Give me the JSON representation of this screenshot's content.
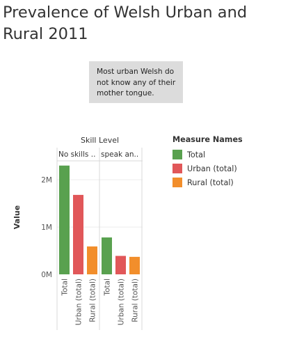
{
  "title": "Prevalence of Welsh Urban and Rural 2011",
  "annotation": "Most urban Welsh do not know any of their mother tongue.",
  "legend": {
    "title": "Measure Names",
    "items": [
      {
        "label": "Total",
        "color": "#59a14f"
      },
      {
        "label": "Urban (total)",
        "color": "#e15759"
      },
      {
        "label": "Rural (total)",
        "color": "#f28e2b"
      }
    ]
  },
  "chart_data": {
    "type": "bar",
    "column_header_title": "Skill Level",
    "groups": [
      "No skills ..",
      "speak an.."
    ],
    "categories": [
      "Total",
      "Urban (total)",
      "Rural (total)"
    ],
    "series": [
      {
        "group": "No skills ..",
        "values": [
          2300000,
          1680000,
          590000
        ]
      },
      {
        "group": "speak an..",
        "values": [
          780000,
          390000,
          370000
        ]
      }
    ],
    "ylabel": "Value",
    "y_ticks": [
      {
        "value": 0,
        "label": "0M"
      },
      {
        "value": 1000000,
        "label": "1M"
      },
      {
        "value": 2000000,
        "label": "2M"
      }
    ],
    "ylim": [
      0,
      2400000
    ],
    "grid": true,
    "legend_position": "right"
  }
}
